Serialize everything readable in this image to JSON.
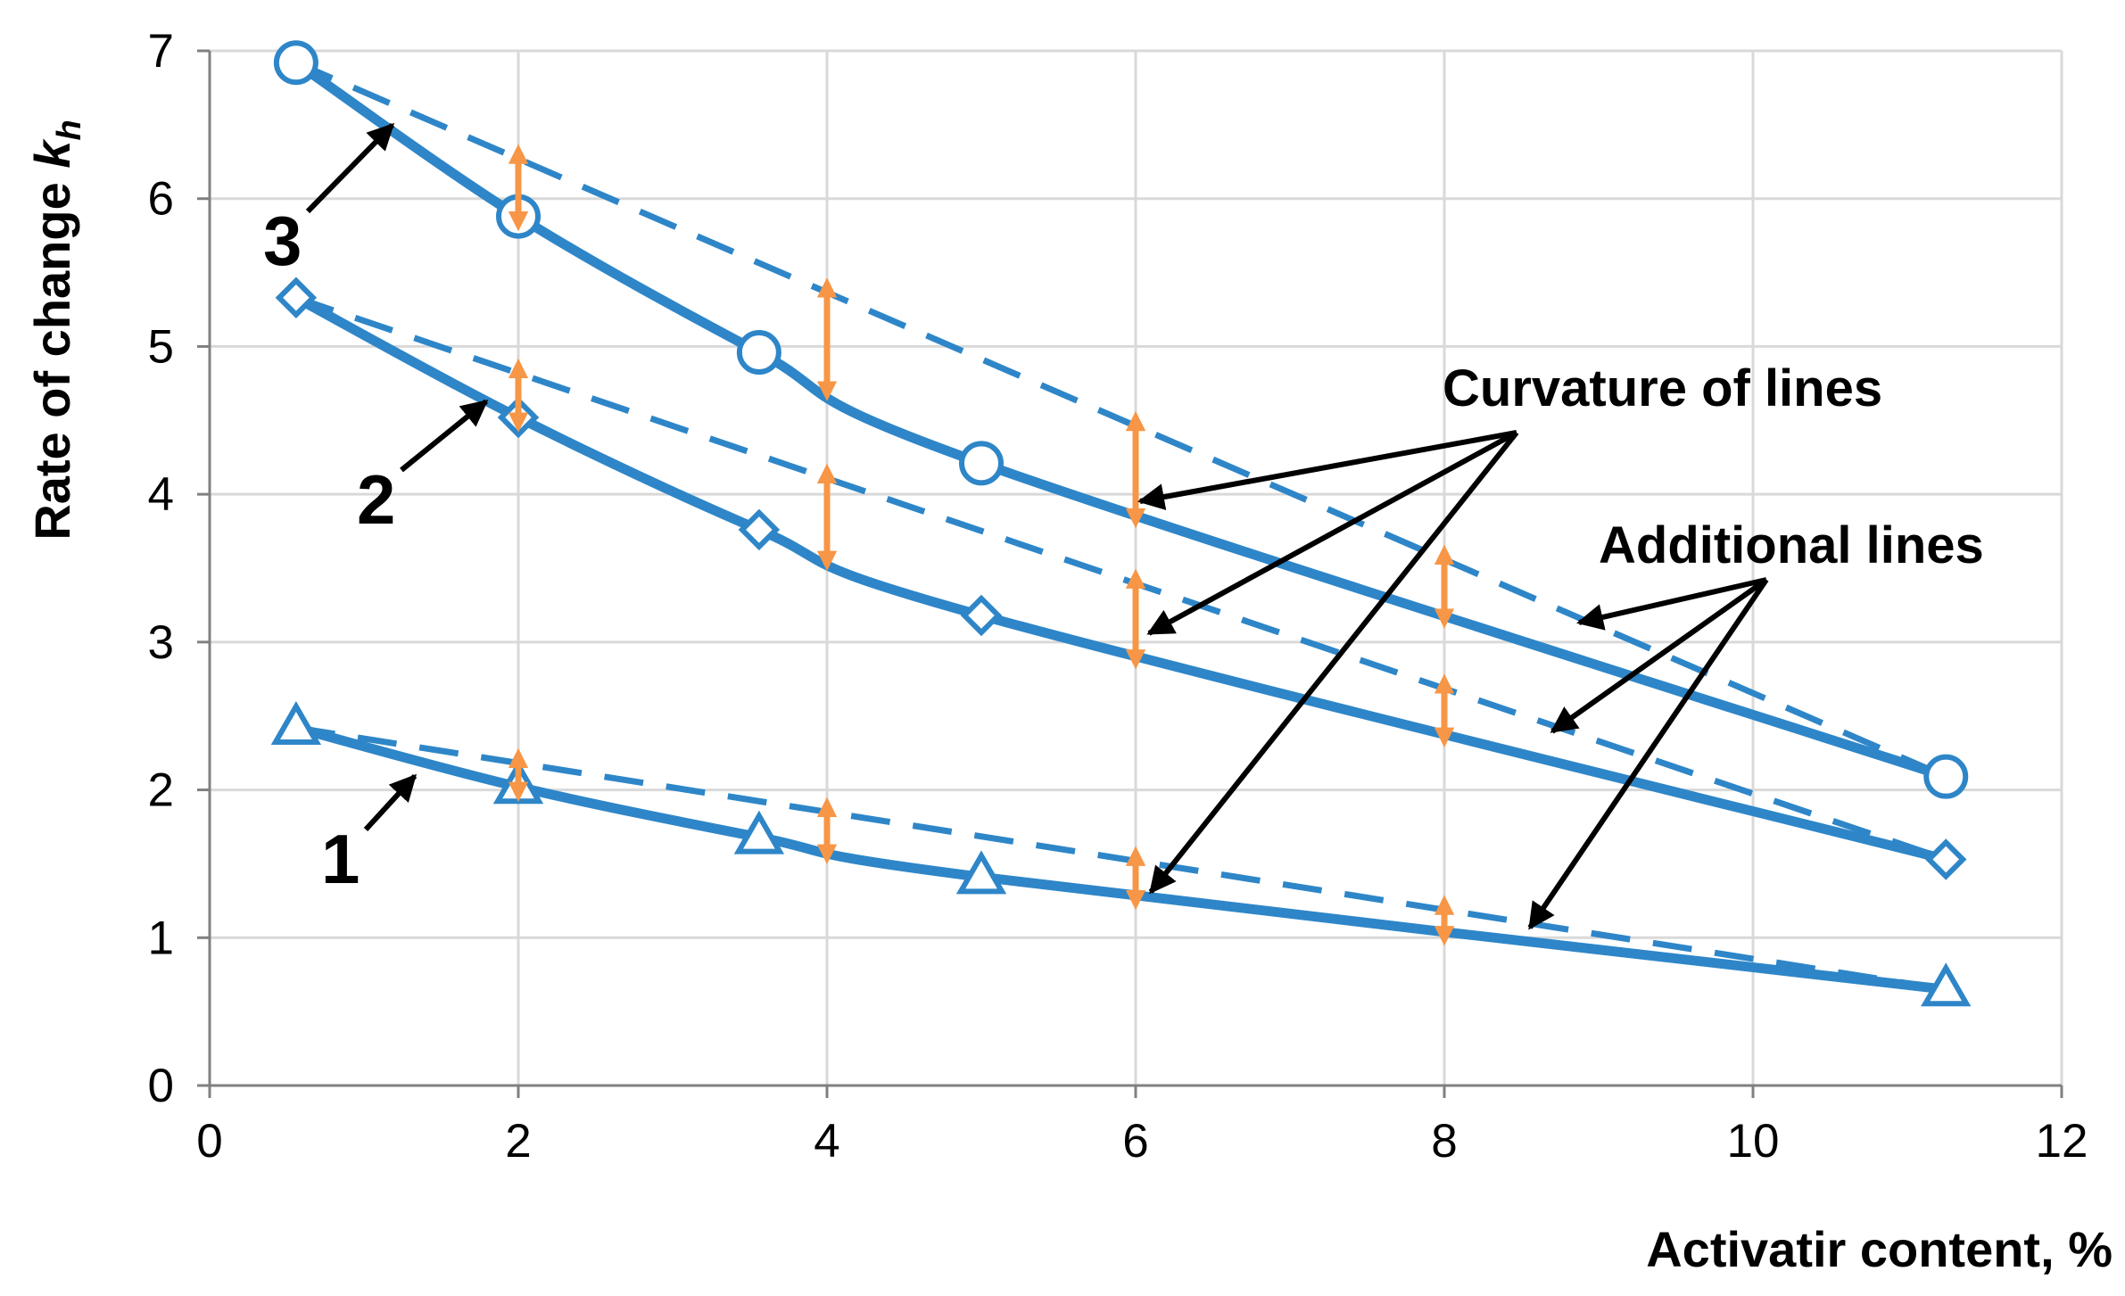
{
  "chart_data": {
    "type": "line",
    "xlabel": "Activatir content, %",
    "ylabel_main": "Rate of change ",
    "ylabel_sub": "k",
    "ylabel_subscript": "h",
    "xlim": [
      0,
      12
    ],
    "ylim": [
      0,
      7
    ],
    "xticks": [
      "0",
      "2",
      "4",
      "6",
      "8",
      "10",
      "12"
    ],
    "yticks": [
      "0",
      "1",
      "2",
      "3",
      "4",
      "5",
      "6",
      "7"
    ],
    "grid": true,
    "colors": {
      "series": "#2e86c8",
      "marker_fill": "#ffffff",
      "double_arrow": "#f79646",
      "annotation_arrow": "#000000",
      "grid": "#d9d9d9",
      "axis": "#808080"
    },
    "series": [
      {
        "label": "1",
        "marker": "triangle",
        "x": [
          0.56,
          2.0,
          3.56,
          5.0,
          11.25
        ],
        "y": [
          2.42,
          2.02,
          1.68,
          1.41,
          0.65
        ],
        "additional_line": [
          [
            0.56,
            2.42
          ],
          [
            11.25,
            0.65
          ]
        ]
      },
      {
        "label": "2",
        "marker": "diamond",
        "x": [
          0.56,
          2.0,
          3.56,
          5.0,
          11.25
        ],
        "y": [
          5.33,
          4.52,
          3.76,
          3.18,
          1.53
        ],
        "additional_line": [
          [
            0.56,
            5.33
          ],
          [
            11.25,
            1.53
          ]
        ]
      },
      {
        "label": "3",
        "marker": "circle",
        "x": [
          0.56,
          2.0,
          3.56,
          5.0,
          11.25
        ],
        "y": [
          6.92,
          5.88,
          4.96,
          4.21,
          2.09
        ],
        "additional_line": [
          [
            0.56,
            6.92
          ],
          [
            11.25,
            2.09
          ]
        ]
      }
    ],
    "curvature_markers_x": [
      2,
      4,
      6,
      8
    ],
    "annotations": [
      {
        "text": "Curvature of lines"
      },
      {
        "text": "Additional lines"
      }
    ]
  }
}
